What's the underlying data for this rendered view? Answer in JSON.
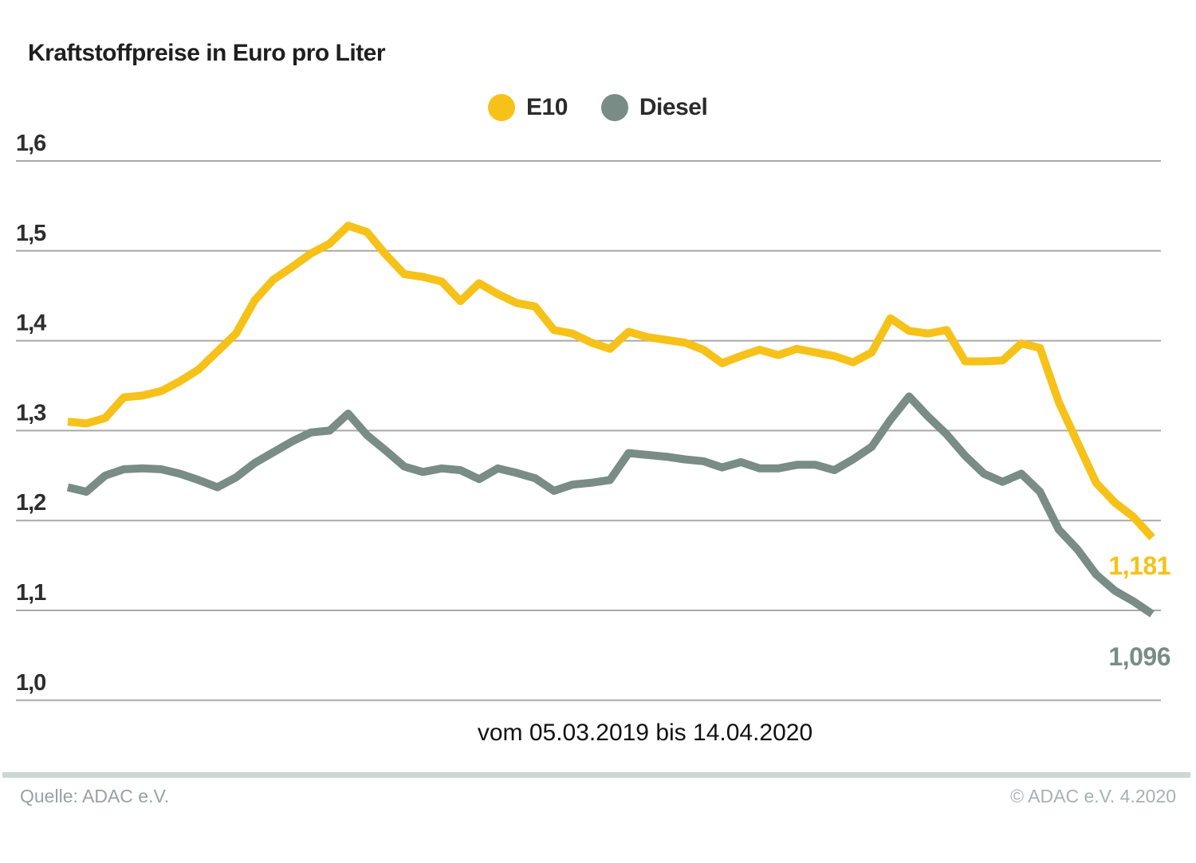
{
  "title": "Kraftstoffpreise in Euro pro Liter",
  "legend": {
    "e10_label": "E10",
    "diesel_label": "Diesel"
  },
  "caption": "vom 05.03.2019 bis 14.04.2020",
  "annotations": {
    "e10_end": "1,181",
    "diesel_end": "1,096"
  },
  "footer": {
    "source": "Quelle: ADAC e.V.",
    "copyright": "© ADAC e.V. 4.2020"
  },
  "colors": {
    "e10": "#F6C219",
    "diesel": "#798C86",
    "grid": "#a9a9a9",
    "divider": "#CBD7D1"
  },
  "chart_data": {
    "type": "line",
    "title": "Kraftstoffpreise in Euro pro Liter",
    "ylabel": "Euro pro Liter",
    "x_start": "05.03.2019",
    "x_end": "14.04.2020",
    "x_step": "weekly",
    "ylim": [
      1.0,
      1.6
    ],
    "yticks": [
      "1,6",
      "1,5",
      "1,4",
      "1,3",
      "1,2",
      "1,1",
      "1,0"
    ],
    "grid": "horizontal-only",
    "legend_position": "top-center",
    "end_labels": {
      "E10": "1,181",
      "Diesel": "1,096"
    },
    "series": [
      {
        "name": "E10",
        "color": "#F6C219",
        "values": [
          1.31,
          1.308,
          1.314,
          1.337,
          1.339,
          1.344,
          1.355,
          1.368,
          1.388,
          1.408,
          1.445,
          1.468,
          1.482,
          1.497,
          1.508,
          1.528,
          1.521,
          1.496,
          1.474,
          1.471,
          1.466,
          1.444,
          1.464,
          1.452,
          1.442,
          1.438,
          1.412,
          1.408,
          1.398,
          1.391,
          1.41,
          1.404,
          1.401,
          1.398,
          1.39,
          1.375,
          1.383,
          1.39,
          1.384,
          1.391,
          1.387,
          1.383,
          1.376,
          1.387,
          1.425,
          1.411,
          1.408,
          1.412,
          1.377,
          1.377,
          1.378,
          1.397,
          1.392,
          1.332,
          1.287,
          1.242,
          1.22,
          1.204,
          1.181
        ]
      },
      {
        "name": "Diesel",
        "color": "#798C86",
        "values": [
          1.237,
          1.232,
          1.25,
          1.257,
          1.258,
          1.257,
          1.252,
          1.245,
          1.237,
          1.248,
          1.264,
          1.276,
          1.288,
          1.298,
          1.3,
          1.319,
          1.295,
          1.278,
          1.26,
          1.254,
          1.258,
          1.256,
          1.246,
          1.258,
          1.253,
          1.247,
          1.233,
          1.24,
          1.242,
          1.245,
          1.275,
          1.273,
          1.271,
          1.268,
          1.266,
          1.259,
          1.265,
          1.258,
          1.258,
          1.262,
          1.262,
          1.256,
          1.268,
          1.282,
          1.312,
          1.338,
          1.316,
          1.296,
          1.272,
          1.252,
          1.243,
          1.252,
          1.232,
          1.19,
          1.168,
          1.14,
          1.122,
          1.11,
          1.096
        ]
      }
    ]
  }
}
